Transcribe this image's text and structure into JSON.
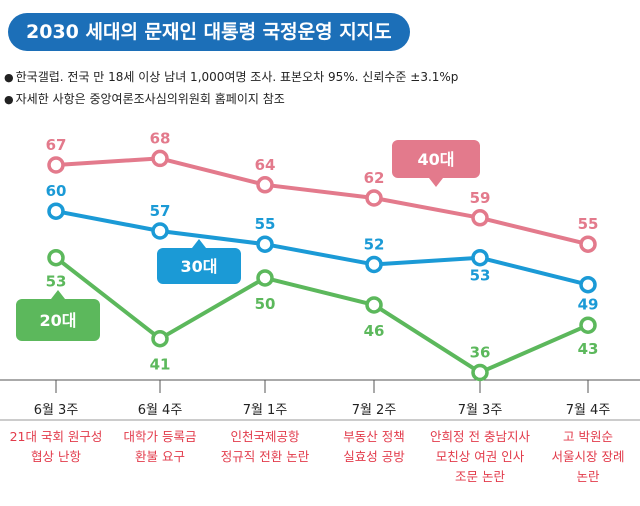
{
  "title": "2030 세대의 문재인 대통령 국정운영 지지도",
  "notes": [
    "한국갤럽. 전국 만 18세 이상 남녀 1,000여명 조사. 표본오차 95%. 신뢰수준 ±3.1%p",
    "자세한 사항은 중앙여론조사심의위원회 홈페이지 참조"
  ],
  "note_bullet": "●",
  "chart_data": {
    "type": "line",
    "categories": [
      "6월 3주",
      "6월 4주",
      "7월 1주",
      "7월 2주",
      "7월 3주",
      "7월 4주"
    ],
    "series": [
      {
        "name": "40대",
        "values": [
          67,
          68,
          64,
          62,
          59,
          55
        ],
        "color": "#e37a8c"
      },
      {
        "name": "30대",
        "values": [
          60,
          57,
          55,
          52,
          53,
          49
        ],
        "color": "#1b9ad6"
      },
      {
        "name": "20대",
        "values": [
          53,
          41,
          50,
          46,
          36,
          43
        ],
        "color": "#5cb85c"
      }
    ],
    "ylim": [
      30,
      75
    ],
    "events": [
      [
        "21대 국회 원구성",
        "협상 난항"
      ],
      [
        "대학가 등록금",
        "환불 요구"
      ],
      [
        "인천국제공항",
        "정규직 전환 논란"
      ],
      [
        "부동산 정책",
        "실효성 공방"
      ],
      [
        "안희정 전 충남지사",
        "모친상 여권 인사",
        "조문 논란"
      ],
      [
        "고 박원순",
        "서울시장 장례",
        "논란"
      ]
    ]
  }
}
